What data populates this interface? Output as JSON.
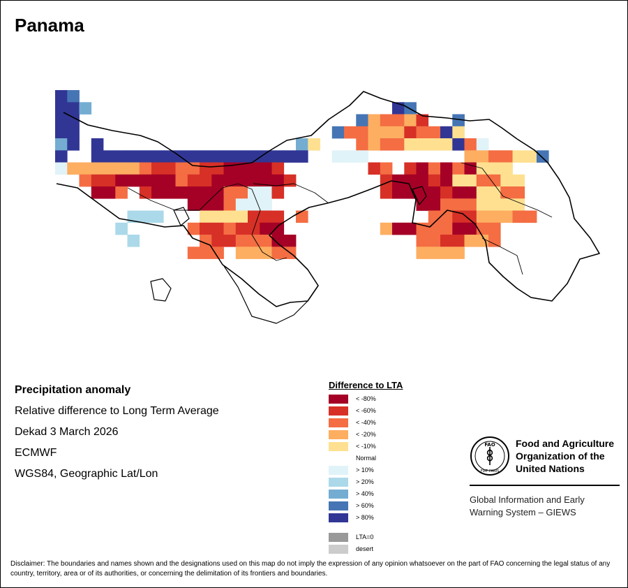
{
  "title": "Panama",
  "info": {
    "variable": "Precipitation anomaly",
    "description": "Relative difference to Long Term Average",
    "period": "Dekad 3 March 2026",
    "source": "ECMWF",
    "projection": "WGS84, Geographic Lat/Lon"
  },
  "legend": {
    "title": "Difference to LTA",
    "classes": [
      {
        "label": "< -80%",
        "color": "#a50026"
      },
      {
        "label": "< -60%",
        "color": "#d73027"
      },
      {
        "label": "< -40%",
        "color": "#f46d43"
      },
      {
        "label": "< -20%",
        "color": "#fdae61"
      },
      {
        "label": "< -10%",
        "color": "#fee090"
      },
      {
        "label": "Normal",
        "color": "#ffffff"
      },
      {
        "label": "> 10%",
        "color": "#e0f3f8"
      },
      {
        "label": "> 20%",
        "color": "#abd9e9"
      },
      {
        "label": "> 40%",
        "color": "#74add1"
      },
      {
        "label": "> 60%",
        "color": "#4575b4"
      },
      {
        "label": "> 80%",
        "color": "#313695"
      }
    ],
    "extra": [
      {
        "label": "LTA=0",
        "color": "#999999"
      },
      {
        "label": "desert",
        "color": "#cccccc"
      }
    ]
  },
  "organization": {
    "name_line1": "Food and Agriculture",
    "name_line2": "Organization of the",
    "name_line3": "United Nations",
    "logo_text": "FAO",
    "logo_motto": "FIAT PANIS",
    "system_line1": "Global Information and Early",
    "system_line2": "Warning System – GIEWS"
  },
  "disclaimer": "Disclaimer: The boundaries and names shown and the designations used on this map do not imply the expression of any opinion whatsoever on the part of FAO concerning the legal status of any country, territory, area or of its authorities, or concerning the delimitation of its frontiers and boundaries.",
  "grid": {
    "rows": [
      "BA......................................",
      "BBC.........................BA..........",
      "BB.......................AIHHIG..A......",
      "BB.....................AJJIIIGJJBE......",
      "CB.B................CK...HIJJKKKKBJL....",
      "B..BBBBBBBBBBBBBBBBBB..LLL........IIJJKKA",
      "LIIIIIMNOONNOOPPPPO.......ON.OPNPNPKKK...",
      "..NOOPPPPPNOOQQQQQQO.......OPPPOQKKJJKK..",
      "...PPN.OQQQQQQJJLLO........OPPPPOPPKKJJ..",
      "...........QQQNLLL............PPNNJKKKK..",
      "......DDD...KKKKOOO.N..........JJOOIIIJJ.",
      ".....D.....JOOJOOQQ........IPPJJHPPJJ...",
      "......D.....JOOJNNQQ..........JJOOIIJ...",
      "...........JJJ.MMMNN..........IIII......",
      "....................................."
    ]
  }
}
